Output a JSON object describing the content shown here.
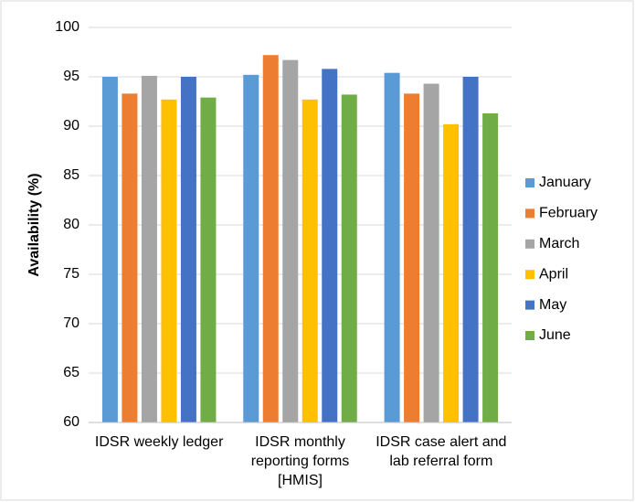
{
  "chart_data": {
    "type": "bar",
    "y_label": "Availability (%)",
    "categories": [
      "IDSR weekly ledger",
      "IDSR monthly reporting forms [HMIS]",
      "IDSR case alert and lab referral form"
    ],
    "series": [
      {
        "name": "January",
        "color": "#5b9bd5",
        "values": [
          95.0,
          95.2,
          95.4
        ]
      },
      {
        "name": "February",
        "color": "#ed7d31",
        "values": [
          93.3,
          97.2,
          93.3
        ]
      },
      {
        "name": "March",
        "color": "#a5a5a5",
        "values": [
          95.1,
          96.7,
          94.3
        ]
      },
      {
        "name": "April",
        "color": "#ffc000",
        "values": [
          92.7,
          92.7,
          90.2
        ]
      },
      {
        "name": "May",
        "color": "#4472c4",
        "values": [
          95.0,
          95.8,
          95.0
        ]
      },
      {
        "name": "June",
        "color": "#70ad47",
        "values": [
          92.9,
          93.2,
          91.3
        ]
      }
    ],
    "ylim": [
      60,
      100
    ],
    "yticks": [
      60,
      65,
      70,
      75,
      80,
      85,
      90,
      95,
      100
    ],
    "grid": true,
    "legend": "right"
  }
}
